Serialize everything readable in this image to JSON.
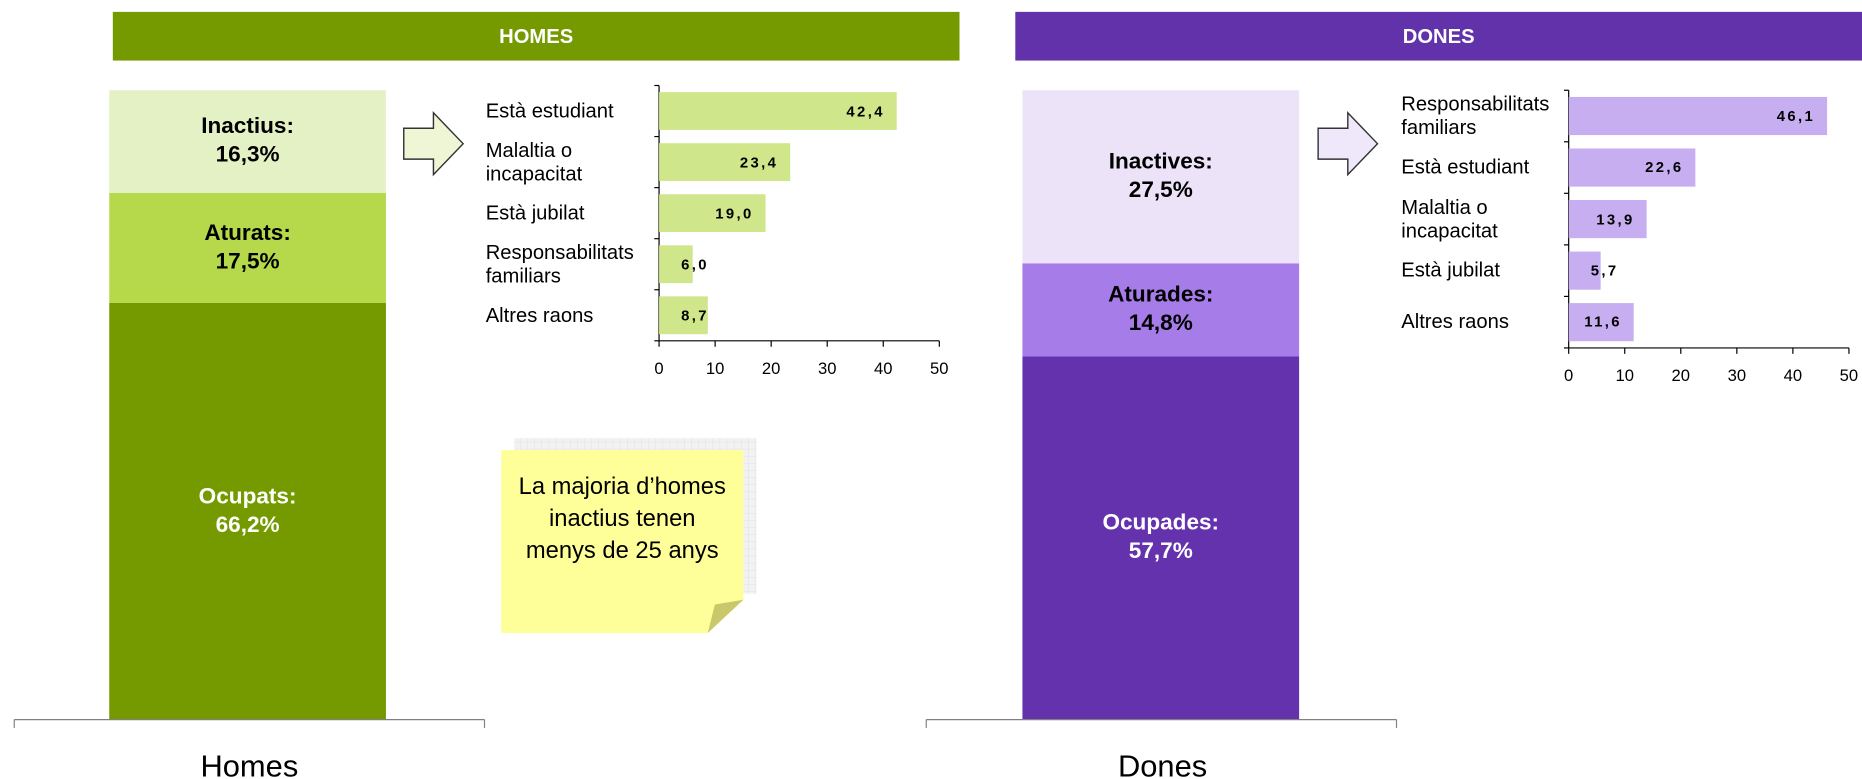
{
  "chart_data": [
    {
      "type": "stacked_column",
      "title": "HOMES",
      "header_color": "#759a00",
      "categories": [
        "Homes"
      ],
      "ylim": [
        0,
        100
      ],
      "series": [
        {
          "name": "Ocupats:",
          "color": "#759a00",
          "values": [
            66.2
          ],
          "value_labels": [
            "66,2%"
          ]
        },
        {
          "name": "Aturats:",
          "color": "#b5d94a",
          "values": [
            17.5
          ],
          "value_labels": [
            "17,5%"
          ]
        },
        {
          "name": "Inactius:",
          "color": "#e4f1c4",
          "values": [
            16.3
          ],
          "value_labels": [
            "16,3%"
          ]
        }
      ]
    },
    {
      "type": "hbar",
      "categories": [
        "Està estudiant",
        "Malaltia o incapacitat",
        "Està jubilat",
        "Responsabilitats familiars",
        "Altres raons"
      ],
      "values": [
        42.4,
        23.4,
        19.0,
        6.0,
        8.7
      ],
      "value_labels": [
        "42,4",
        "23,4",
        "19,0",
        "6,0",
        "8,7"
      ],
      "color": "#d0e68a",
      "xlim": [
        0,
        50
      ],
      "xticks": [
        0,
        10,
        20,
        30,
        40,
        50
      ],
      "annotation": "La majoria d’homes inactius tenen menys de 25 anys"
    },
    {
      "type": "stacked_column",
      "title": "DONES",
      "header_color": "#6232aa",
      "categories": [
        "Dones"
      ],
      "ylim": [
        0,
        100
      ],
      "series": [
        {
          "name": "Ocupades:",
          "color": "#6432ad",
          "values": [
            57.7
          ],
          "value_labels": [
            "57,7%"
          ]
        },
        {
          "name": "Aturades:",
          "color": "#a67ce8",
          "values": [
            14.8
          ],
          "value_labels": [
            "14,8%"
          ]
        },
        {
          "name": "Inactives:",
          "color": "#ece3f8",
          "values": [
            27.5
          ],
          "value_labels": [
            "27,5%"
          ]
        }
      ]
    },
    {
      "type": "hbar",
      "categories": [
        "Responsabilitats familiars",
        "Està estudiant",
        "Malaltia o incapacitat",
        "Està jubilat",
        "Altres raons"
      ],
      "values": [
        46.1,
        22.6,
        13.9,
        5.7,
        11.6
      ],
      "value_labels": [
        "46,1",
        "22,6",
        "13,9",
        "5,7",
        "11,6"
      ],
      "color": "#c6aef0",
      "xlim": [
        0,
        50
      ],
      "xticks": [
        0,
        10,
        20,
        30,
        40,
        50
      ]
    }
  ]
}
